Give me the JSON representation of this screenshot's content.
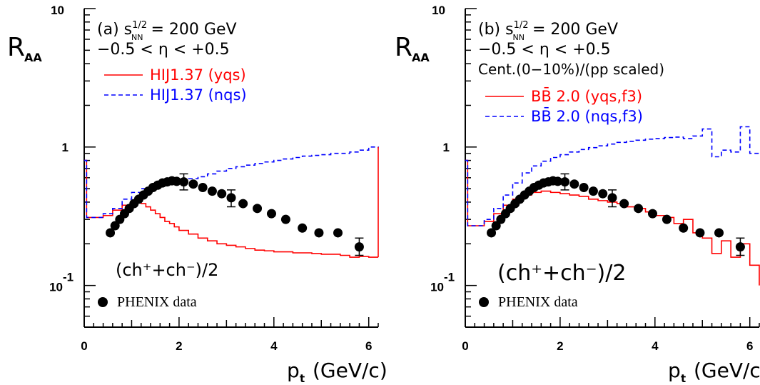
{
  "chart_data": [
    {
      "type": "line",
      "panel": "(a)",
      "ylabel_main": "R",
      "ylabel_sub": "AA",
      "xlabel": "p",
      "xlabel_sub": "t",
      "xlabel_unit": "(GeV/c)",
      "xlim": [
        0,
        6.2
      ],
      "ylim": [
        0.05,
        10
      ],
      "yscale": "log",
      "x_ticks": [
        0,
        2,
        4,
        6
      ],
      "x_tick_labels": [
        "0",
        "2",
        "4",
        "6"
      ],
      "y_tick_labels": {
        "ten": "10",
        "one": "1",
        "tenth_base": "10",
        "tenth_exp": "-1"
      },
      "header": {
        "line1_prefix": "(a) s",
        "line1_sup": "1/2",
        "line1_sub": "NN",
        "line1_suffix": " = 200 GeV",
        "line2": "−0.5 < η < +0.5",
        "line3": ""
      },
      "species_label": "(ch⁺+ch⁻)/2",
      "series": [
        {
          "name": "HIJ1.37 (yqs)",
          "color": "#ff0000",
          "style": "solid",
          "x": [
            0.0,
            0.05,
            0.2,
            0.4,
            0.6,
            0.8,
            1.0,
            1.1,
            1.2,
            1.3,
            1.4,
            1.5,
            1.6,
            1.7,
            1.8,
            1.9,
            2.0,
            2.2,
            2.4,
            2.6,
            2.8,
            3.0,
            3.2,
            3.4,
            3.6,
            3.8,
            4.0,
            4.2,
            4.4,
            4.6,
            4.8,
            5.0,
            5.2,
            5.4,
            5.6,
            5.8,
            6.0,
            6.2
          ],
          "y": [
            0.8,
            0.31,
            0.31,
            0.32,
            0.35,
            0.38,
            0.4,
            0.4,
            0.39,
            0.37,
            0.35,
            0.33,
            0.31,
            0.29,
            0.28,
            0.265,
            0.25,
            0.235,
            0.22,
            0.21,
            0.2,
            0.195,
            0.19,
            0.185,
            0.18,
            0.178,
            0.175,
            0.175,
            0.172,
            0.172,
            0.17,
            0.168,
            0.168,
            0.165,
            0.16,
            0.162,
            0.16,
            0.16
          ]
        },
        {
          "name": "HIJ1.37 (nqs)",
          "color": "#0000ff",
          "style": "dashed",
          "x": [
            0.0,
            0.05,
            0.2,
            0.4,
            0.6,
            0.8,
            1.0,
            1.2,
            1.4,
            1.6,
            1.8,
            2.0,
            2.2,
            2.4,
            2.6,
            2.8,
            3.0,
            3.2,
            3.4,
            3.6,
            3.8,
            4.0,
            4.2,
            4.4,
            4.6,
            4.8,
            5.0,
            5.2,
            5.4,
            5.6,
            5.8,
            6.0,
            6.2
          ],
          "y": [
            0.8,
            0.31,
            0.31,
            0.33,
            0.36,
            0.42,
            0.47,
            0.5,
            0.52,
            0.54,
            0.55,
            0.57,
            0.59,
            0.61,
            0.64,
            0.67,
            0.7,
            0.72,
            0.74,
            0.76,
            0.78,
            0.8,
            0.82,
            0.84,
            0.86,
            0.87,
            0.88,
            0.9,
            0.9,
            0.92,
            0.95,
            1.0,
            0.98
          ]
        }
      ],
      "phenix_label": "PHENIX data",
      "phenix": {
        "x": [
          0.55,
          0.65,
          0.75,
          0.85,
          0.95,
          1.05,
          1.15,
          1.25,
          1.35,
          1.45,
          1.55,
          1.65,
          1.75,
          1.85,
          1.95,
          2.1,
          2.3,
          2.5,
          2.7,
          2.9,
          3.1,
          3.35,
          3.65,
          3.95,
          4.25,
          4.6,
          4.95,
          5.35,
          5.8
        ],
        "y": [
          0.24,
          0.27,
          0.3,
          0.33,
          0.36,
          0.39,
          0.42,
          0.45,
          0.48,
          0.51,
          0.53,
          0.55,
          0.56,
          0.57,
          0.565,
          0.56,
          0.54,
          0.51,
          0.48,
          0.46,
          0.43,
          0.39,
          0.36,
          0.33,
          0.3,
          0.26,
          0.24,
          0.24,
          0.19
        ],
        "err_x": [
          2.1,
          3.1,
          5.8
        ],
        "err_y": [
          0.56,
          0.43,
          0.19
        ],
        "err_lo": [
          0.49,
          0.37,
          0.165
        ],
        "err_hi": [
          0.64,
          0.49,
          0.22
        ]
      }
    },
    {
      "type": "line",
      "panel": "(b)",
      "ylabel_main": "R",
      "ylabel_sub": "AA",
      "xlabel": "p",
      "xlabel_sub": "t",
      "xlabel_unit": "(GeV/c)",
      "xlim": [
        0,
        6.2
      ],
      "ylim": [
        0.05,
        10
      ],
      "yscale": "log",
      "x_ticks": [
        0,
        2,
        4,
        6
      ],
      "x_tick_labels": [
        "0",
        "2",
        "4",
        "6"
      ],
      "y_tick_labels": {
        "ten": "10",
        "one": "1",
        "tenth_base": "10",
        "tenth_exp": "-1"
      },
      "header": {
        "line1_prefix": "(b) s",
        "line1_sup": "1/2",
        "line1_sub": "NN",
        "line1_suffix": " = 200 GeV",
        "line2": "−0.5 < η < +0.5",
        "line3": "Cent.(0−10%)/(pp scaled)"
      },
      "species_label": "(ch⁺+ch⁻)/2",
      "series": [
        {
          "name": "BB̄ 2.0 (yqs,f3)",
          "color": "#ff0000",
          "style": "solid",
          "x": [
            0.0,
            0.05,
            0.2,
            0.4,
            0.6,
            0.8,
            1.0,
            1.2,
            1.4,
            1.6,
            1.8,
            2.0,
            2.2,
            2.4,
            2.6,
            2.8,
            3.0,
            3.2,
            3.4,
            3.6,
            3.8,
            4.0,
            4.2,
            4.4,
            4.6,
            4.8,
            5.0,
            5.2,
            5.4,
            5.6,
            5.8,
            6.0,
            6.2
          ],
          "y": [
            0.8,
            0.27,
            0.27,
            0.29,
            0.33,
            0.38,
            0.42,
            0.45,
            0.47,
            0.48,
            0.47,
            0.46,
            0.45,
            0.44,
            0.42,
            0.41,
            0.4,
            0.39,
            0.37,
            0.36,
            0.34,
            0.32,
            0.31,
            0.28,
            0.3,
            0.24,
            0.22,
            0.17,
            0.21,
            0.16,
            0.2,
            0.14,
            0.1
          ]
        },
        {
          "name": "BB̄ 2.0 (nqs,f3)",
          "color": "#0000ff",
          "style": "dashed",
          "x": [
            0.0,
            0.05,
            0.2,
            0.4,
            0.6,
            0.8,
            1.0,
            1.2,
            1.4,
            1.6,
            1.8,
            2.0,
            2.2,
            2.4,
            2.6,
            2.8,
            3.0,
            3.2,
            3.4,
            3.6,
            3.8,
            4.0,
            4.2,
            4.4,
            4.6,
            4.8,
            5.0,
            5.2,
            5.4,
            5.6,
            5.8,
            6.0,
            6.2
          ],
          "y": [
            0.8,
            0.27,
            0.27,
            0.3,
            0.36,
            0.45,
            0.55,
            0.65,
            0.73,
            0.79,
            0.84,
            0.88,
            0.92,
            0.96,
            0.99,
            1.02,
            1.05,
            1.08,
            1.1,
            1.12,
            1.14,
            1.15,
            1.17,
            1.18,
            1.15,
            1.2,
            1.35,
            0.85,
            0.95,
            0.92,
            1.4,
            0.9,
            0.88
          ]
        }
      ],
      "phenix_label": "PHENIX data",
      "phenix": {
        "x": [
          0.55,
          0.65,
          0.75,
          0.85,
          0.95,
          1.05,
          1.15,
          1.25,
          1.35,
          1.45,
          1.55,
          1.65,
          1.75,
          1.85,
          1.95,
          2.1,
          2.3,
          2.5,
          2.7,
          2.9,
          3.1,
          3.35,
          3.65,
          3.95,
          4.25,
          4.6,
          4.95,
          5.35,
          5.8
        ],
        "y": [
          0.24,
          0.27,
          0.3,
          0.33,
          0.36,
          0.39,
          0.42,
          0.45,
          0.48,
          0.51,
          0.53,
          0.55,
          0.56,
          0.57,
          0.565,
          0.56,
          0.54,
          0.51,
          0.48,
          0.46,
          0.43,
          0.39,
          0.36,
          0.33,
          0.3,
          0.26,
          0.24,
          0.24,
          0.19
        ],
        "err_x": [
          2.1,
          3.1,
          5.8
        ],
        "err_y": [
          0.56,
          0.43,
          0.19
        ],
        "err_lo": [
          0.49,
          0.37,
          0.165
        ],
        "err_hi": [
          0.64,
          0.49,
          0.22
        ]
      }
    }
  ]
}
